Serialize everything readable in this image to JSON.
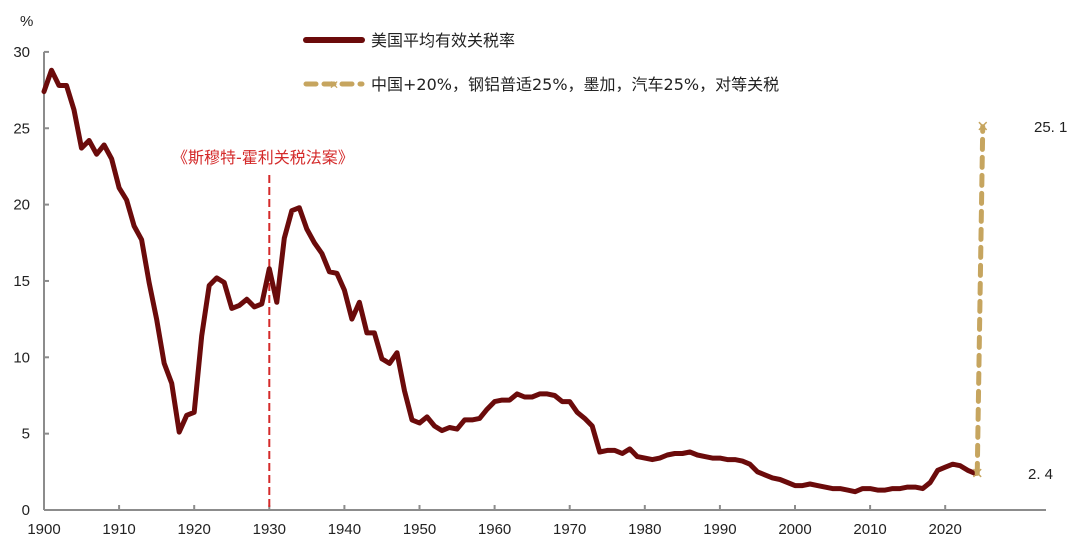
{
  "chart_data": {
    "type": "line",
    "title": "",
    "xlabel": "",
    "ylabel": "%",
    "xlim": [
      1900,
      2028
    ],
    "ylim": [
      0,
      30
    ],
    "x_ticks": [
      "1900",
      "1910",
      "1920",
      "1930",
      "1940",
      "1950",
      "1960",
      "1970",
      "1980",
      "1990",
      "2000",
      "2010",
      "2020"
    ],
    "y_ticks": [
      "0",
      "5",
      "10",
      "15",
      "20",
      "25",
      "30"
    ],
    "grid": false,
    "legend_position": "top-center",
    "series": [
      {
        "name": "美国平均有效关税率",
        "color": "#6b0b0b",
        "style": "solid",
        "x": [
          1900,
          1901,
          1902,
          1903,
          1904,
          1905,
          1906,
          1907,
          1908,
          1909,
          1910,
          1911,
          1912,
          1913,
          1914,
          1915,
          1916,
          1917,
          1918,
          1919,
          1920,
          1921,
          1922,
          1923,
          1924,
          1925,
          1926,
          1927,
          1928,
          1929,
          1930,
          1931,
          1932,
          1933,
          1934,
          1935,
          1936,
          1937,
          1938,
          1939,
          1940,
          1941,
          1942,
          1943,
          1944,
          1945,
          1946,
          1947,
          1948,
          1949,
          1950,
          1951,
          1952,
          1953,
          1954,
          1955,
          1956,
          1957,
          1958,
          1959,
          1960,
          1961,
          1962,
          1963,
          1964,
          1965,
          1966,
          1967,
          1968,
          1969,
          1970,
          1971,
          1972,
          1973,
          1974,
          1975,
          1976,
          1977,
          1978,
          1979,
          1980,
          1981,
          1982,
          1983,
          1984,
          1985,
          1986,
          1987,
          1988,
          1989,
          1990,
          1991,
          1992,
          1993,
          1994,
          1995,
          1996,
          1997,
          1998,
          1999,
          2000,
          2001,
          2002,
          2003,
          2004,
          2005,
          2006,
          2007,
          2008,
          2009,
          2010,
          2011,
          2012,
          2013,
          2014,
          2015,
          2016,
          2017,
          2018,
          2019,
          2020,
          2021,
          2022,
          2023,
          2024
        ],
        "values": [
          27.4,
          28.8,
          27.8,
          27.8,
          26.2,
          23.7,
          24.2,
          23.3,
          23.9,
          23.0,
          21.1,
          20.3,
          18.6,
          17.7,
          14.9,
          12.5,
          9.6,
          8.3,
          5.1,
          6.2,
          6.4,
          11.4,
          14.7,
          15.2,
          14.9,
          13.2,
          13.4,
          13.8,
          13.3,
          13.5,
          15.8,
          13.6,
          17.8,
          19.6,
          19.8,
          18.4,
          17.5,
          16.8,
          15.6,
          15.5,
          14.4,
          12.5,
          13.6,
          11.6,
          11.6,
          9.9,
          9.6,
          10.3,
          7.8,
          5.9,
          5.7,
          6.1,
          5.5,
          5.2,
          5.4,
          5.3,
          5.9,
          5.9,
          6.0,
          6.6,
          7.1,
          7.2,
          7.2,
          7.6,
          7.4,
          7.4,
          7.6,
          7.6,
          7.5,
          7.1,
          7.1,
          6.4,
          6.0,
          5.5,
          3.8,
          3.9,
          3.9,
          3.7,
          4.0,
          3.5,
          3.4,
          3.3,
          3.4,
          3.6,
          3.7,
          3.7,
          3.8,
          3.6,
          3.5,
          3.4,
          3.4,
          3.3,
          3.3,
          3.2,
          3.0,
          2.5,
          2.3,
          2.1,
          2.0,
          1.8,
          1.6,
          1.6,
          1.7,
          1.6,
          1.5,
          1.4,
          1.4,
          1.3,
          1.2,
          1.4,
          1.4,
          1.3,
          1.3,
          1.4,
          1.4,
          1.5,
          1.5,
          1.4,
          1.8,
          2.6,
          2.8,
          3.0,
          2.9,
          2.6,
          2.4
        ]
      },
      {
        "name": "中国+20%，钢铝普适25%，墨加，汽车25%，对等关税",
        "color": "#c6a55f",
        "style": "dashed",
        "marker": "x",
        "x": [
          2024,
          2025
        ],
        "values": [
          2.4,
          25.1
        ]
      }
    ],
    "annotations": [
      {
        "text": "《斯穆特-霍利关税法案》",
        "x": 1930,
        "type": "vertical-dashed-line",
        "color": "#d42a2a"
      },
      {
        "text": "25. 1",
        "x": 2025,
        "y": 25.1
      },
      {
        "text": "2. 4",
        "x": 2024,
        "y": 2.4
      }
    ]
  },
  "legend": {
    "items": [
      {
        "label": "美国平均有效关税率",
        "color": "#6b0b0b"
      },
      {
        "label": "中国+20%，钢铝普适25%，墨加，汽车25%，对等关税",
        "color": "#c6a55f"
      }
    ]
  },
  "axis": {
    "y_unit": "%"
  },
  "annotation": {
    "smoot_hawley": "《斯穆特-霍利关税法案》",
    "high_label": "25. 1",
    "low_label": "2. 4"
  }
}
